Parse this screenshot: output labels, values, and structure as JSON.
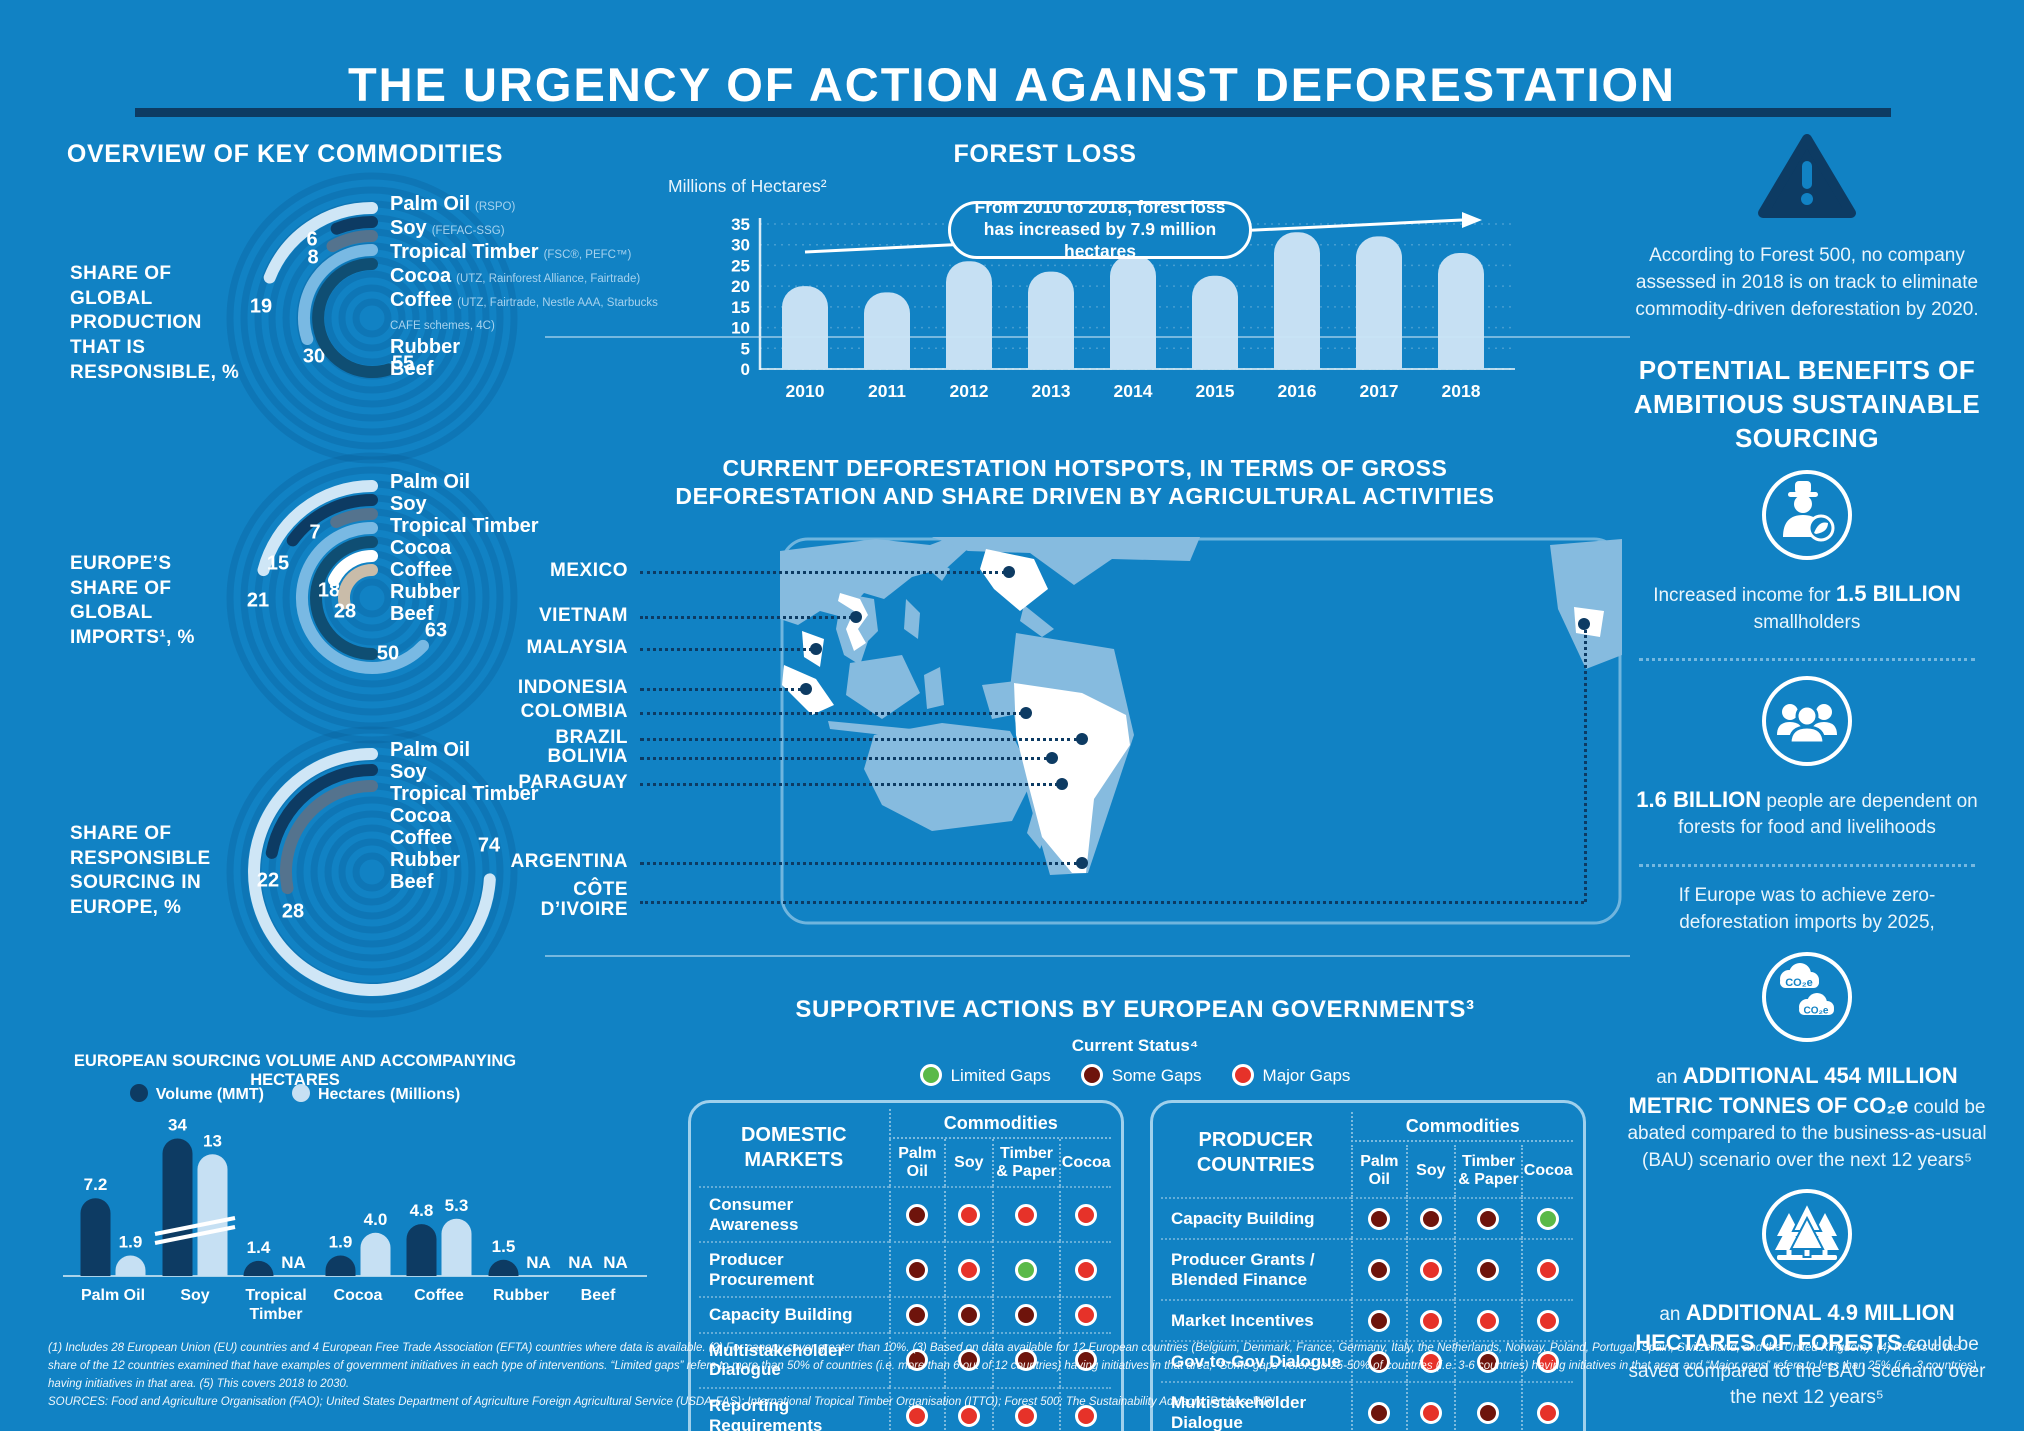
{
  "title": "THE URGENCY OF ACTION AGAINST DEFORESTATION",
  "palette": {
    "background": "#1182c4",
    "navy": "#0d3b63",
    "light_blue": "#c6e0f3",
    "pale_ring": "#cfe6f6",
    "slate": "#54738e",
    "mid_blue": "#79b9e3",
    "dark_teal": "#0f4e73",
    "white": "#ffffff",
    "tan": "#c9bca9",
    "land": "#86bbdf",
    "scheme_text": "#a6d2ee",
    "status_limited": "#5bb948",
    "status_some": "#6e140c",
    "status_major": "#e63229"
  },
  "overview": {
    "heading": "OVERVIEW OF KEY COMMODITIES",
    "commodities": [
      {
        "name": "Palm Oil",
        "scheme": "(RSPO)"
      },
      {
        "name": "Soy",
        "scheme": "(FEFAC-SSG)"
      },
      {
        "name": "Tropical Timber",
        "scheme": "(FSC®, PEFC™)"
      },
      {
        "name": "Cocoa",
        "scheme": "(UTZ, Rainforest Alliance, Fairtrade)"
      },
      {
        "name": "Coffee",
        "scheme": "(UTZ, Fairtrade, Nestle AAA, Starbucks CAFE schemes, 4C)"
      },
      {
        "name": "Rubber",
        "scheme": ""
      },
      {
        "name": "Beef",
        "scheme": ""
      }
    ]
  },
  "ring_colors": [
    "#cfe6f6",
    "#0d3b63",
    "#54738e",
    "#79b9e3",
    "#0f4e73",
    "#ffffff",
    "#c9bca9"
  ],
  "chart_data": [
    {
      "id": "production_share",
      "type": "radial-bar",
      "title": "SHARE OF GLOBAL PRODUCTION THAT IS RESPONSIBLE, %",
      "categories": [
        "Palm Oil",
        "Soy",
        "Tropical Timber",
        "Cocoa",
        "Coffee",
        "Rubber",
        "Beef"
      ],
      "values": [
        19,
        6,
        8,
        30,
        55,
        null,
        null
      ],
      "max": 100
    },
    {
      "id": "europe_imports",
      "type": "radial-bar",
      "title": "EUROPE’S SHARE OF GLOBAL IMPORTS¹, %",
      "categories": [
        "Palm Oil",
        "Soy",
        "Tropical Timber",
        "Cocoa",
        "Coffee",
        "Rubber",
        "Beef"
      ],
      "values": [
        21,
        15,
        7,
        63,
        50,
        18,
        28
      ],
      "max": 100
    },
    {
      "id": "responsible_sourcing",
      "type": "radial-bar",
      "title": "SHARE OF RESPONSIBLE SOURCING IN EUROPE, %",
      "categories": [
        "Palm Oil",
        "Soy",
        "Tropical Timber",
        "Cocoa",
        "Coffee",
        "Rubber",
        "Beef"
      ],
      "values": [
        74,
        22,
        28,
        null,
        null,
        null,
        null
      ],
      "max": 100
    },
    {
      "id": "sourcing_volume",
      "type": "bar",
      "title": "EUROPEAN SOURCING VOLUME AND ACCOMPANYING HECTARES",
      "categories": [
        "Palm Oil",
        "Soy",
        "Tropical|Timber",
        "Cocoa",
        "Coffee",
        "Rubber",
        "Beef"
      ],
      "series": [
        {
          "name": "Volume (MMT)",
          "color": "#0d3b63",
          "values": [
            7.2,
            34,
            1.4,
            1.9,
            4.8,
            1.5,
            null
          ],
          "labels": [
            "7.2",
            "34",
            "1.4",
            "1.9",
            "4.8",
            "1.5",
            "NA"
          ]
        },
        {
          "name": "Hectares (Millions)",
          "color": "#c6e0f3",
          "values": [
            1.9,
            13,
            null,
            4.0,
            5.3,
            null,
            null
          ],
          "labels": [
            "1.9",
            "13",
            "NA",
            "4.0",
            "5.3",
            "NA",
            "NA"
          ]
        }
      ],
      "axis_break_category": "Soy"
    },
    {
      "id": "forest_loss",
      "type": "bar",
      "title": "FOREST LOSS",
      "ylabel": "Millions of Hectares²",
      "categories": [
        "2010",
        "2011",
        "2012",
        "2013",
        "2014",
        "2015",
        "2016",
        "2017",
        "2018"
      ],
      "values": [
        20,
        18.5,
        26,
        23.5,
        27.5,
        22.5,
        33,
        32,
        28
      ],
      "ylim": [
        0,
        35
      ],
      "yticks": [
        0,
        5,
        10,
        15,
        20,
        25,
        30,
        35
      ],
      "annotation": "From 2010 to 2018, forest loss has increased by 7.9 million hectares"
    }
  ],
  "hotspots": {
    "title_line1": "CURRENT DEFORESTATION HOTSPOTS, IN TERMS OF GROSS",
    "title_line2": "DEFORESTATION AND SHARE DRIVEN BY AGRICULTURAL ACTIVITIES",
    "countries": [
      "MEXICO",
      "VIETNAM",
      "MALAYSIA",
      "INDONESIA",
      "COLOMBIA",
      "BRAZIL",
      "BOLIVIA",
      "PARAGUAY",
      "ARGENTINA",
      "CÔTE D’IVOIRE"
    ]
  },
  "supportive": {
    "title": "SUPPORTIVE ACTIONS BY EUROPEAN GOVERNMENTS³",
    "legend_title": "Current Status⁴",
    "legend": [
      {
        "label": "Limited Gaps",
        "status": "limited"
      },
      {
        "label": "Some Gaps",
        "status": "some"
      },
      {
        "label": "Major Gaps",
        "status": "major"
      }
    ],
    "status_colors": {
      "limited": "#5bb948",
      "some": "#6e140c",
      "major": "#e63229"
    },
    "columns_header": "Commodities",
    "commodity_columns": [
      "Palm Oil",
      "Soy",
      "Timber & Paper",
      "Cocoa"
    ],
    "tables": [
      {
        "title": "DOMESTIC MARKETS",
        "rows": [
          {
            "label": "Consumer Awareness",
            "statuses": [
              "some",
              "major",
              "major",
              "major"
            ]
          },
          {
            "label": "Producer Procurement",
            "statuses": [
              "some",
              "major",
              "limited",
              "major"
            ]
          },
          {
            "label": "Capacity Building",
            "statuses": [
              "some",
              "some",
              "some",
              "major"
            ]
          },
          {
            "label": "Multistakeholder Dialogue",
            "statuses": [
              "some",
              "some",
              "some",
              "some"
            ]
          },
          {
            "label": "Reporting Requirements",
            "statuses": [
              "major",
              "major",
              "major",
              "major"
            ]
          }
        ]
      },
      {
        "title": "PRODUCER COUNTRIES",
        "rows": [
          {
            "label": "Capacity Building",
            "statuses": [
              "some",
              "some",
              "some",
              "limited"
            ]
          },
          {
            "label": "Producer Grants / Blended Finance",
            "statuses": [
              "some",
              "major",
              "some",
              "major"
            ]
          },
          {
            "label": "Market Incentives",
            "statuses": [
              "some",
              "major",
              "major",
              "major"
            ]
          },
          {
            "label": "Gov-to-Gov Dialogue",
            "statuses": [
              "some",
              "major",
              "some",
              "major"
            ]
          },
          {
            "label": "Multistakeholder Dialogue",
            "statuses": [
              "some",
              "major",
              "some",
              "major"
            ]
          }
        ]
      }
    ]
  },
  "right": {
    "alert": "According to Forest 500, no company assessed in 2018 is on track to eliminate commodity-driven deforestation by 2020.",
    "benefits_heading": "POTENTIAL BENEFITS OF AMBITIOUS SUSTAINABLE SOURCING",
    "benefits": [
      {
        "icon": "farmer-icon",
        "text": "Increased income for **1.5 BILLION** smallholders"
      },
      {
        "icon": "people-icon",
        "text": "**1.6 BILLION** people are dependent on forests for food and livelihoods"
      }
    ],
    "conditional_intro": "If Europe was to achieve zero-deforestation imports by 2025,",
    "conditional_benefits": [
      {
        "icon": "co2-icon",
        "text": "an **ADDITIONAL 454 MILLION METRIC TONNES OF CO₂e** could be abated compared to the business-as-usual (BAU) scenario over the next 12 years⁵"
      },
      {
        "icon": "trees-icon",
        "text": "an **ADDITIONAL 4.9 MILLION HECTARES OF FORESTS** could be saved compared to the BAU scenario over the next 12 years⁵"
      }
    ]
  },
  "footnotes": "(1) Includes 28 European Union (EU) countries and 4 European Free Trade Association (EFTA) countries where data is available. (2) For canopy cover greater than 10%. (3) Based on data available for 12 European countries (Belgium, Denmark, France, Germany, Italy, the Netherlands, Norway, Poland, Portugal, Spain, Switzerland, and the United Kingdom). (4) Refers to the share of the 12 countries examined that have examples of government initiatives in each type of interventions. “Limited gaps” refers to more than 50% of countries (i.e. more than 6 out of 12 countries) having initiatives in that area; “Some gaps” refers to 25-50% of countries (i.e. 3-6 countries) having initiatives in that area; and “Major gaps” refers to less than 25% (i.e. 3 countries) having initiatives in that area. (5) This covers 2018 to 2030.",
  "sources": "SOURCES: Food and Agriculture Organisation (FAO); United States Department of Agriculture Foreign Agricultural Service (USDA-FAS); International Tropical Timber Organisation (ITTO); Forest 500; The Sustainability Advisory; Probos; WRI"
}
